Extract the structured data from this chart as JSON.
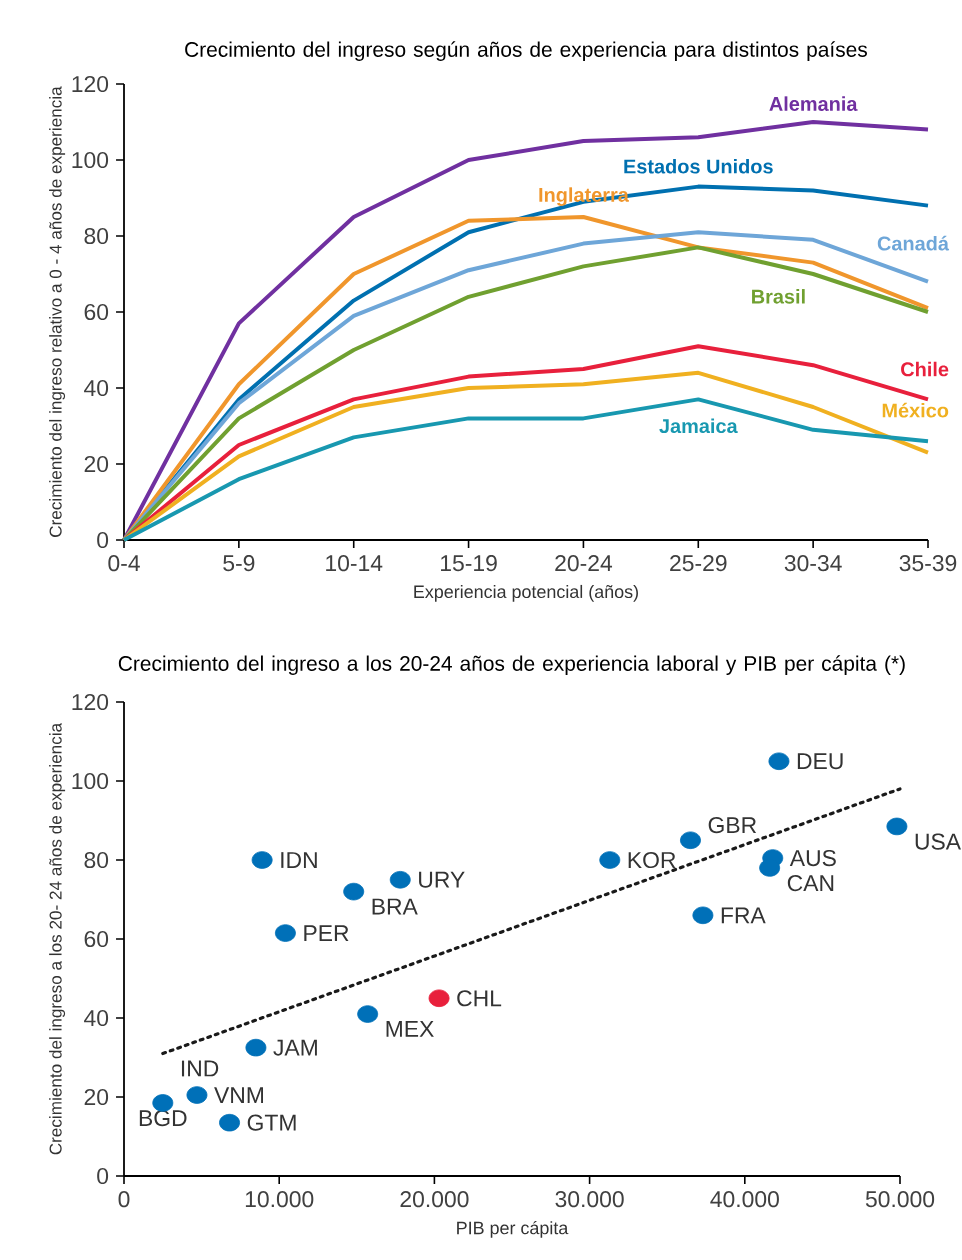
{
  "chart_data": [
    {
      "type": "line",
      "title": "Crecimiento del ingreso según años de experiencia para distintos países",
      "xlabel": "Experiencia potencial (años)",
      "ylabel": "Crecimiento del ingreso relativo a 0 - 4 años de experiencia",
      "categories": [
        "0-4",
        "5-9",
        "10-14",
        "15-19",
        "20-24",
        "25-29",
        "30-34",
        "35-39"
      ],
      "ylim": [
        0,
        120
      ],
      "yticks": [
        0,
        20,
        40,
        60,
        80,
        100,
        120
      ],
      "marker": "none",
      "line_style": "solid",
      "series": [
        {
          "name": "Alemania",
          "color": "#7030a0",
          "values": [
            0,
            57,
            85,
            100,
            105,
            106,
            110,
            108
          ]
        },
        {
          "name": "Estados Unidos",
          "color": "#0070b0",
          "values": [
            0,
            37,
            63,
            81,
            89,
            93,
            92,
            88
          ]
        },
        {
          "name": "Inglaterra",
          "color": "#f0962c",
          "values": [
            0,
            41,
            70,
            84,
            85,
            77,
            73,
            61
          ]
        },
        {
          "name": "Canadá",
          "color": "#6ea6d8",
          "values": [
            0,
            36,
            59,
            71,
            78,
            81,
            79,
            68
          ]
        },
        {
          "name": "Brasil",
          "color": "#70a030",
          "values": [
            0,
            32,
            50,
            64,
            72,
            77,
            70,
            60
          ]
        },
        {
          "name": "Chile",
          "color": "#e8203c",
          "values": [
            0,
            25,
            37,
            43,
            45,
            51,
            46,
            37
          ]
        },
        {
          "name": "México",
          "color": "#f0b020",
          "values": [
            0,
            22,
            35,
            40,
            41,
            44,
            35,
            23
          ]
        },
        {
          "name": "Jamaica",
          "color": "#1898b0",
          "values": [
            0,
            16,
            27,
            32,
            32,
            37,
            29,
            26
          ]
        }
      ]
    },
    {
      "type": "scatter",
      "title": "Crecimiento del ingreso a los 20-24 años de experiencia laboral y PIB per cápita (*)",
      "xlabel": "PIB per cápita",
      "ylabel": "Crecimiento del ingreso a los 20- 24 años de experiencia",
      "xlim": [
        0,
        50000
      ],
      "xticks": [
        0,
        {
          "value": 10000,
          "label": "10.000"
        },
        {
          "value": 20000,
          "label": "20.000"
        },
        {
          "value": 30000,
          "label": "30.000"
        },
        {
          "value": 40000,
          "label": "40.000"
        },
        {
          "value": 50000,
          "label": "50.000"
        }
      ],
      "ylim": [
        0,
        120
      ],
      "yticks": [
        0,
        20,
        40,
        60,
        80,
        100,
        120
      ],
      "marker": "circle",
      "series": [
        {
          "type": "scatter",
          "x": [
            8900,
            14800,
            17800,
            10400,
            31300,
            36500,
            42200,
            41800,
            41600,
            37300,
            49800,
            20300,
            15700,
            8500,
            4700,
            2500,
            6800
          ],
          "values": [
            80,
            72,
            75,
            61.5,
            80,
            85,
            105,
            80.5,
            78,
            66,
            88.5,
            45,
            41,
            32.5,
            20.5,
            18.5,
            13.5
          ],
          "colors": [
            "#0070b8",
            "#0070b8",
            "#0070b8",
            "#0070b8",
            "#0070b8",
            "#0070b8",
            "#0070b8",
            "#0070b8",
            "#0070b8",
            "#0070b8",
            "#0070b8",
            "#e8203c",
            "#0070b8",
            "#0070b8",
            "#0070b8",
            "#0070b8",
            "#0070b8"
          ]
        },
        {
          "type": "line",
          "x": [
            2500,
            50000
          ],
          "values": [
            31,
            98
          ],
          "color": "#1a1a1a",
          "line_style": "dotted",
          "marker": "none"
        }
      ],
      "annotations": [
        {
          "text": "IDN",
          "x": 8900,
          "y": 80
        },
        {
          "text": "BRA",
          "x": 14800,
          "y": 72
        },
        {
          "text": "URY",
          "x": 17800,
          "y": 75
        },
        {
          "text": "PER",
          "x": 10400,
          "y": 61.5
        },
        {
          "text": "KOR",
          "x": 31300,
          "y": 80
        },
        {
          "text": "GBR",
          "x": 36500,
          "y": 85
        },
        {
          "text": "DEU",
          "x": 42200,
          "y": 105
        },
        {
          "text": "AUS",
          "x": 41800,
          "y": 80.5
        },
        {
          "text": "CAN",
          "x": 41600,
          "y": 78
        },
        {
          "text": "FRA",
          "x": 37300,
          "y": 66
        },
        {
          "text": "USA",
          "x": 49800,
          "y": 88.5
        },
        {
          "text": "CHL",
          "x": 20300,
          "y": 45
        },
        {
          "text": "MEX",
          "x": 15700,
          "y": 41
        },
        {
          "text": "JAM",
          "x": 8500,
          "y": 32.5
        },
        {
          "text": "VNM",
          "x": 4700,
          "y": 20.5
        },
        {
          "text": "BGD",
          "x": 2500,
          "y": 18.5
        },
        {
          "text": "GTM",
          "x": 6800,
          "y": 13.5
        },
        {
          "text": "IND",
          "x": 2500,
          "y": 31
        }
      ]
    }
  ]
}
